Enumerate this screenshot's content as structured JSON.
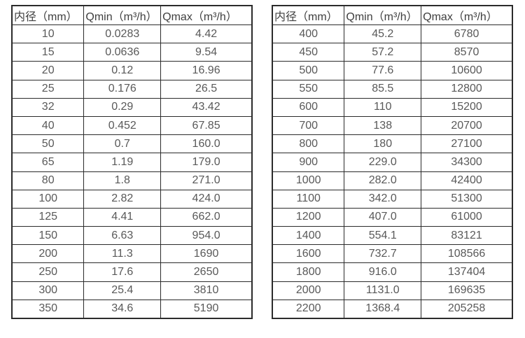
{
  "colors": {
    "background": "#ffffff",
    "border": "#2b2b2b",
    "header_text": "#3f3f3f",
    "cell_text": "#595959"
  },
  "chart_data": [
    {
      "type": "table",
      "title": "",
      "headers": [
        "内径（mm）",
        "Qmin（m³/h）",
        "Qmax（m³/h）"
      ],
      "rows": [
        [
          "10",
          "0.0283",
          "4.42"
        ],
        [
          "15",
          "0.0636",
          "9.54"
        ],
        [
          "20",
          "0.12",
          "16.96"
        ],
        [
          "25",
          "0.176",
          "26.5"
        ],
        [
          "32",
          "0.29",
          "43.42"
        ],
        [
          "40",
          "0.452",
          "67.85"
        ],
        [
          "50",
          "0.7",
          "160.0"
        ],
        [
          "65",
          "1.19",
          "179.0"
        ],
        [
          "80",
          "1.8",
          "271.0"
        ],
        [
          "100",
          "2.82",
          "424.0"
        ],
        [
          "125",
          "4.41",
          "662.0"
        ],
        [
          "150",
          "6.63",
          "954.0"
        ],
        [
          "200",
          "11.3",
          "1690"
        ],
        [
          "250",
          "17.6",
          "2650"
        ],
        [
          "300",
          "25.4",
          "3810"
        ],
        [
          "350",
          "34.6",
          "5190"
        ]
      ]
    },
    {
      "type": "table",
      "title": "",
      "headers": [
        "内径（mm）",
        "Qmin（m³/h）",
        "Qmax（m³/h）"
      ],
      "rows": [
        [
          "400",
          "45.2",
          "6780"
        ],
        [
          "450",
          "57.2",
          "8570"
        ],
        [
          "500",
          "77.6",
          "10600"
        ],
        [
          "550",
          "85.5",
          "12800"
        ],
        [
          "600",
          "110",
          "15200"
        ],
        [
          "700",
          "138",
          "20700"
        ],
        [
          "800",
          "180",
          "27100"
        ],
        [
          "900",
          "229.0",
          "34300"
        ],
        [
          "1000",
          "282.0",
          "42400"
        ],
        [
          "1100",
          "342.0",
          "51300"
        ],
        [
          "1200",
          "407.0",
          "61000"
        ],
        [
          "1400",
          "554.1",
          "83121"
        ],
        [
          "1600",
          "732.7",
          "108566"
        ],
        [
          "1800",
          "916.0",
          "137404"
        ],
        [
          "2000",
          "1131.0",
          "169635"
        ],
        [
          "2200",
          "1368.4",
          "205258"
        ]
      ]
    }
  ]
}
